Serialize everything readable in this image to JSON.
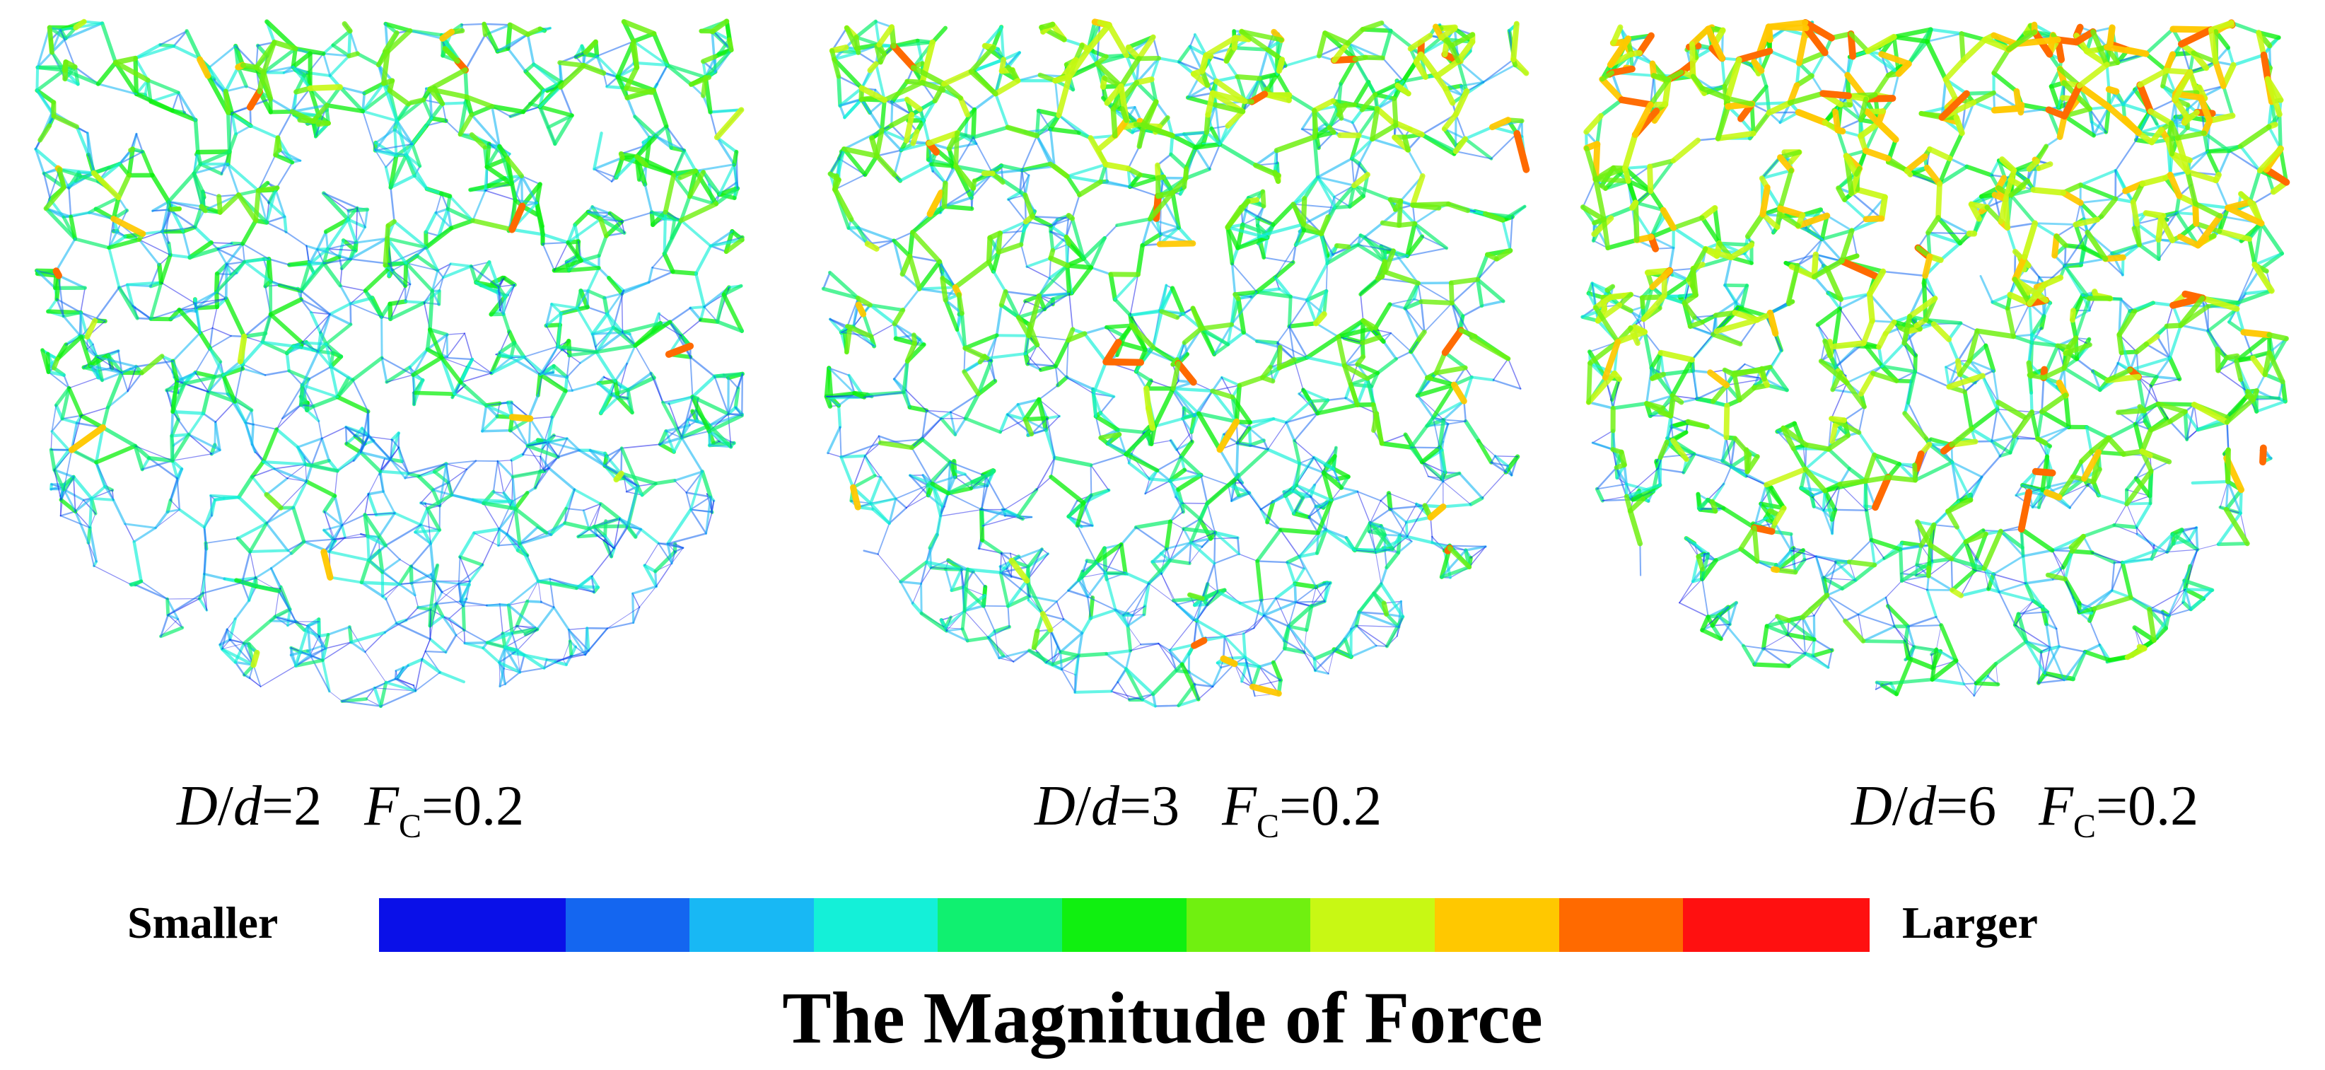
{
  "panels": [
    {
      "id": "dd2",
      "caption": {
        "ratio_symbol_D": "D",
        "ratio_slash": "/",
        "ratio_symbol_d": "d",
        "ratio_value": "=2",
        "force_symbol": "F",
        "force_sub": "C",
        "force_value": "=0.2"
      },
      "strength": 0.35,
      "seed": 11
    },
    {
      "id": "dd3",
      "caption": {
        "ratio_symbol_D": "D",
        "ratio_slash": "/",
        "ratio_symbol_d": "d",
        "ratio_value": "=3",
        "force_symbol": "F",
        "force_sub": "C",
        "force_value": "=0.2"
      },
      "strength": 0.5,
      "seed": 23
    },
    {
      "id": "dd6",
      "caption": {
        "ratio_symbol_D": "D",
        "ratio_slash": "/",
        "ratio_symbol_d": "d",
        "ratio_value": "=6",
        "force_symbol": "F",
        "force_sub": "C",
        "force_value": "=0.2"
      },
      "strength": 0.72,
      "seed": 37
    }
  ],
  "legend": {
    "left_label": "Smaller",
    "right_label": "Larger",
    "title": "The Magnitude of  Force",
    "colors": [
      "#0a10e8",
      "#1466f0",
      "#18b8f4",
      "#14f0d8",
      "#10f070",
      "#10f010",
      "#70f010",
      "#c8f814",
      "#ffc800",
      "#ff6a00",
      "#ff1010"
    ]
  }
}
